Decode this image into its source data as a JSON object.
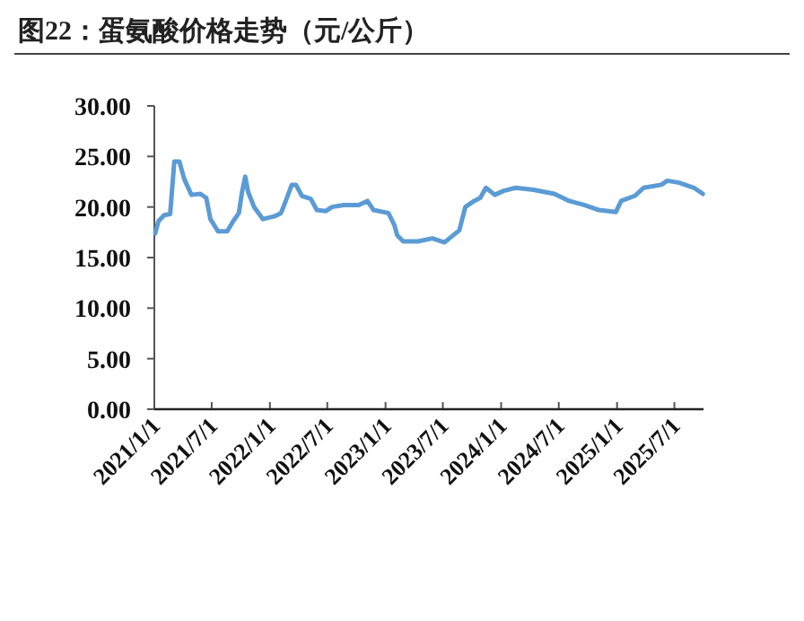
{
  "chart_data": {
    "type": "line",
    "title": "图22：蛋氨酸价格走势（元/公斤）",
    "x": [
      "2021-01-04",
      "2021-01-14",
      "2021-02-01",
      "2021-02-20",
      "2021-03-05",
      "2021-03-21",
      "2021-04-05",
      "2021-04-28",
      "2021-05-26",
      "2021-06-14",
      "2021-06-27",
      "2021-07-21",
      "2021-08-19",
      "2021-09-07",
      "2021-09-25",
      "2021-10-05",
      "2021-10-15",
      "2021-10-24",
      "2021-11-12",
      "2021-12-10",
      "2022-01-17",
      "2022-02-05",
      "2022-02-20",
      "2022-03-11",
      "2022-03-24",
      "2022-04-12",
      "2022-05-10",
      "2022-05-29",
      "2022-06-27",
      "2022-07-16",
      "2022-08-22",
      "2022-10-08",
      "2022-11-05",
      "2022-11-24",
      "2023-01-10",
      "2023-01-29",
      "2023-02-07",
      "2023-02-26",
      "2023-04-13",
      "2023-05-29",
      "2023-07-06",
      "2023-08-22",
      "2023-09-10",
      "2023-10-08",
      "2023-10-27",
      "2023-11-14",
      "2023-12-12",
      "2024-01-09",
      "2024-02-16",
      "2024-04-12",
      "2024-06-17",
      "2024-08-03",
      "2024-09-19",
      "2024-11-05",
      "2024-12-28",
      "2025-01-14",
      "2025-02-26",
      "2025-03-26",
      "2025-05-21",
      "2025-06-09",
      "2025-07-16",
      "2025-09-01",
      "2025-09-29"
    ],
    "series": [
      {
        "color": "#5b9bd5",
        "values": [
          17.4,
          18.6,
          19.2,
          19.3,
          24.5,
          24.5,
          22.8,
          21.2,
          21.3,
          20.9,
          18.8,
          17.6,
          17.6,
          18.6,
          19.4,
          21.5,
          23.0,
          21.5,
          20.0,
          18.8,
          19.1,
          19.4,
          20.6,
          22.2,
          22.2,
          21.1,
          20.8,
          19.7,
          19.6,
          20.0,
          20.2,
          20.2,
          20.6,
          19.7,
          19.4,
          18.2,
          17.2,
          16.6,
          16.6,
          16.9,
          16.5,
          17.7,
          20.0,
          20.6,
          20.9,
          21.9,
          21.2,
          21.6,
          21.9,
          21.7,
          21.3,
          20.6,
          20.2,
          19.7,
          19.5,
          20.6,
          21.1,
          21.9,
          22.2,
          22.6,
          22.4,
          21.9,
          21.3
        ]
      }
    ],
    "xlim": [
      "2021-01-01",
      "2025-10-01"
    ],
    "xticks": [
      {
        "value": "2021-01-01",
        "label": "2021/1/1"
      },
      {
        "value": "2021-07-01",
        "label": "2021/7/1"
      },
      {
        "value": "2022-01-01",
        "label": "2022/1/1"
      },
      {
        "value": "2022-07-01",
        "label": "2022/7/1"
      },
      {
        "value": "2023-01-01",
        "label": "2023/1/1"
      },
      {
        "value": "2023-07-01",
        "label": "2023/7/1"
      },
      {
        "value": "2024-01-01",
        "label": "2024/1/1"
      },
      {
        "value": "2024-07-01",
        "label": "2024/7/1"
      },
      {
        "value": "2025-01-01",
        "label": "2025/1/1"
      },
      {
        "value": "2025-07-01",
        "label": "2025/7/1"
      }
    ],
    "ylim": [
      0,
      30
    ],
    "yticks": [
      {
        "value": 0,
        "label": "0.00"
      },
      {
        "value": 5,
        "label": "5.00"
      },
      {
        "value": 10,
        "label": "10.00"
      },
      {
        "value": 15,
        "label": "15.00"
      },
      {
        "value": 20,
        "label": "20.00"
      },
      {
        "value": 25,
        "label": "25.00"
      },
      {
        "value": 30,
        "label": "30.00"
      }
    ],
    "grid": false,
    "marker": "none",
    "line_style": "solid"
  }
}
